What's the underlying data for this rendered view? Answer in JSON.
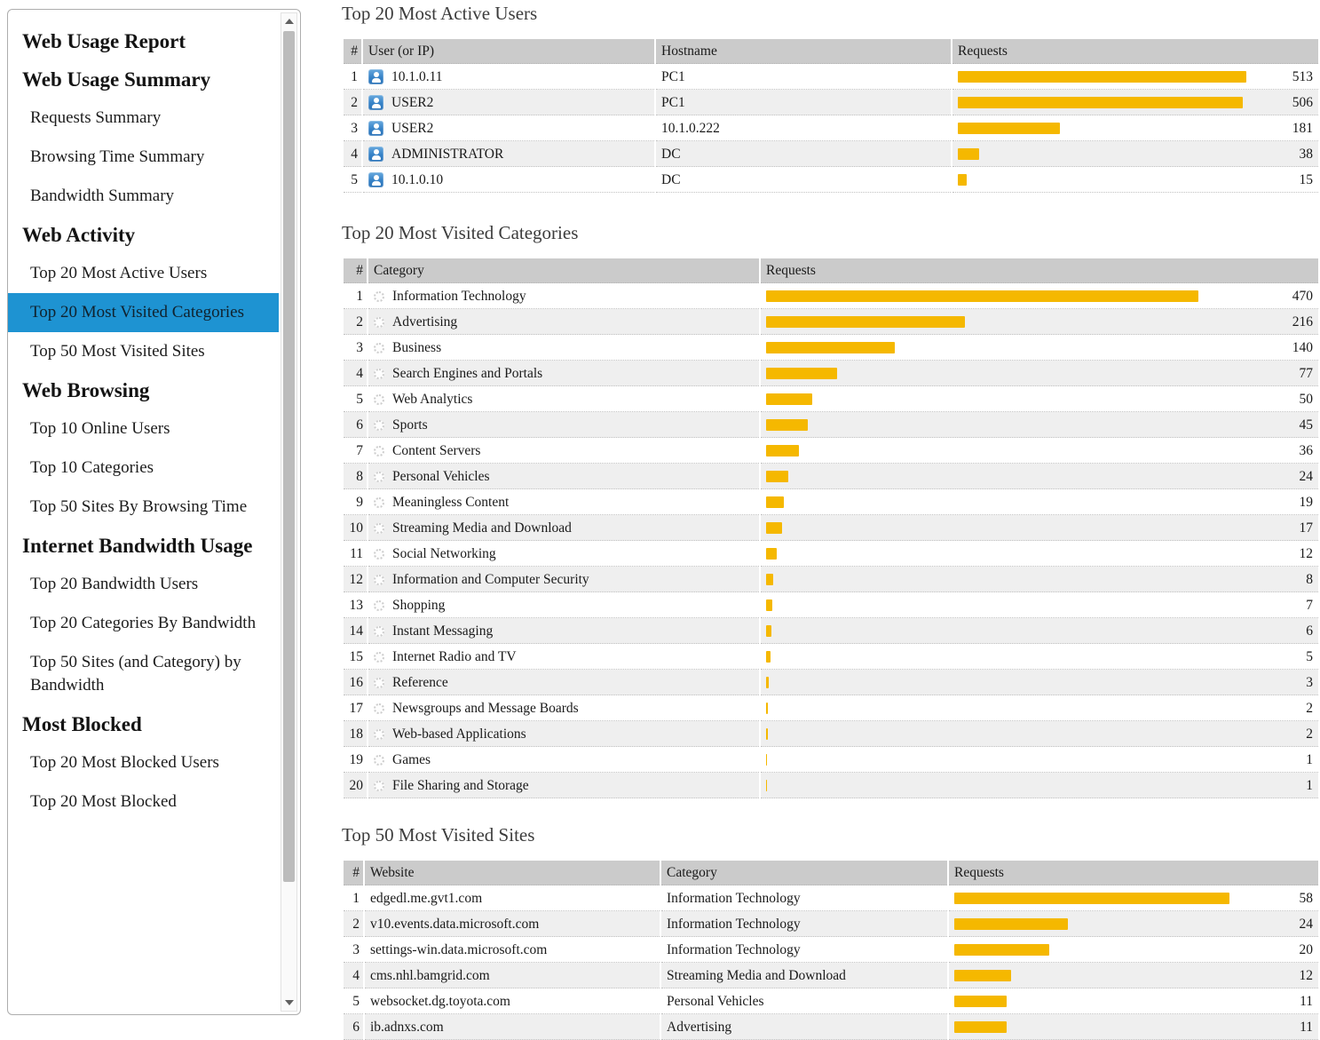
{
  "colors": {
    "accent_blue": "#1E93D2",
    "bar_yellow": "#F5B800",
    "header_gray": "#CBCBCB",
    "row_alt_gray": "#EFEFEF"
  },
  "sidebar": {
    "title": "Web Usage Report",
    "sections": [
      {
        "heading": "Web Usage Summary",
        "items": [
          {
            "label": "Requests Summary",
            "selected": false
          },
          {
            "label": "Browsing Time Summary",
            "selected": false
          },
          {
            "label": "Bandwidth Summary",
            "selected": false
          }
        ]
      },
      {
        "heading": "Web Activity",
        "items": [
          {
            "label": "Top 20 Most Active Users",
            "selected": false
          },
          {
            "label": "Top 20 Most Visited Categories",
            "selected": true
          },
          {
            "label": "Top 50 Most Visited Sites",
            "selected": false
          }
        ]
      },
      {
        "heading": "Web Browsing",
        "items": [
          {
            "label": "Top 10 Online Users",
            "selected": false
          },
          {
            "label": "Top 10 Categories",
            "selected": false
          },
          {
            "label": "Top 50 Sites By Browsing Time",
            "selected": false
          }
        ]
      },
      {
        "heading": "Internet Bandwidth Usage",
        "items": [
          {
            "label": "Top 20 Bandwidth Users",
            "selected": false
          },
          {
            "label": "Top 20 Categories By Bandwidth",
            "selected": false
          },
          {
            "label": "Top 50 Sites (and Category) by Bandwidth",
            "selected": false
          }
        ]
      },
      {
        "heading": "Most Blocked",
        "items": [
          {
            "label": "Top 20 Most Blocked Users",
            "selected": false
          },
          {
            "label": "Top 20 Most Blocked",
            "selected": false
          }
        ]
      }
    ],
    "scrollbar": {
      "up_icon": "triangle-up",
      "down_icon": "triangle-down"
    }
  },
  "tables": [
    {
      "title": "Top 20 Most Active Users",
      "columns": [
        "#",
        "User (or IP)",
        "Hostname",
        "Requests"
      ],
      "row_icon": "user-icon",
      "bar_max_value": 513,
      "rows": [
        {
          "rank": 1,
          "cells": [
            "10.1.0.11",
            "PC1"
          ],
          "requests": 513
        },
        {
          "rank": 2,
          "cells": [
            "USER2",
            "PC1"
          ],
          "requests": 506
        },
        {
          "rank": 3,
          "cells": [
            "USER2",
            "10.1.0.222"
          ],
          "requests": 181
        },
        {
          "rank": 4,
          "cells": [
            "ADMINISTRATOR",
            "DC"
          ],
          "requests": 38
        },
        {
          "rank": 5,
          "cells": [
            "10.1.0.10",
            "DC"
          ],
          "requests": 15
        }
      ]
    },
    {
      "title": "Top 20 Most Visited Categories",
      "columns": [
        "#",
        "Category",
        "Requests"
      ],
      "row_icon": "category-icon",
      "bar_max_value": 470,
      "rows": [
        {
          "rank": 1,
          "cells": [
            "Information Technology"
          ],
          "requests": 470
        },
        {
          "rank": 2,
          "cells": [
            "Advertising"
          ],
          "requests": 216
        },
        {
          "rank": 3,
          "cells": [
            "Business"
          ],
          "requests": 140
        },
        {
          "rank": 4,
          "cells": [
            "Search Engines and Portals"
          ],
          "requests": 77
        },
        {
          "rank": 5,
          "cells": [
            "Web Analytics"
          ],
          "requests": 50
        },
        {
          "rank": 6,
          "cells": [
            "Sports"
          ],
          "requests": 45
        },
        {
          "rank": 7,
          "cells": [
            "Content Servers"
          ],
          "requests": 36
        },
        {
          "rank": 8,
          "cells": [
            "Personal Vehicles"
          ],
          "requests": 24
        },
        {
          "rank": 9,
          "cells": [
            "Meaningless Content"
          ],
          "requests": 19
        },
        {
          "rank": 10,
          "cells": [
            "Streaming Media and Download"
          ],
          "requests": 17
        },
        {
          "rank": 11,
          "cells": [
            "Social Networking"
          ],
          "requests": 12
        },
        {
          "rank": 12,
          "cells": [
            "Information and Computer Security"
          ],
          "requests": 8
        },
        {
          "rank": 13,
          "cells": [
            "Shopping"
          ],
          "requests": 7
        },
        {
          "rank": 14,
          "cells": [
            "Instant Messaging"
          ],
          "requests": 6
        },
        {
          "rank": 15,
          "cells": [
            "Internet Radio and TV"
          ],
          "requests": 5
        },
        {
          "rank": 16,
          "cells": [
            "Reference"
          ],
          "requests": 3
        },
        {
          "rank": 17,
          "cells": [
            "Newsgroups and Message Boards"
          ],
          "requests": 2
        },
        {
          "rank": 18,
          "cells": [
            "Web-based Applications"
          ],
          "requests": 2
        },
        {
          "rank": 19,
          "cells": [
            "Games"
          ],
          "requests": 1
        },
        {
          "rank": 20,
          "cells": [
            "File Sharing and Storage"
          ],
          "requests": 1
        }
      ]
    },
    {
      "title": "Top 50 Most Visited Sites",
      "columns": [
        "#",
        "Website",
        "Category",
        "Requests"
      ],
      "row_icon": null,
      "bar_max_value": 58,
      "rows": [
        {
          "rank": 1,
          "cells": [
            "edgedl.me.gvt1.com",
            "Information Technology"
          ],
          "requests": 58
        },
        {
          "rank": 2,
          "cells": [
            "v10.events.data.microsoft.com",
            "Information Technology"
          ],
          "requests": 24
        },
        {
          "rank": 3,
          "cells": [
            "settings-win.data.microsoft.com",
            "Information Technology"
          ],
          "requests": 20
        },
        {
          "rank": 4,
          "cells": [
            "cms.nhl.bamgrid.com",
            "Streaming Media and Download"
          ],
          "requests": 12
        },
        {
          "rank": 5,
          "cells": [
            "websocket.dg.toyota.com",
            "Personal Vehicles"
          ],
          "requests": 11
        },
        {
          "rank": 6,
          "cells": [
            "ib.adnxs.com",
            "Advertising"
          ],
          "requests": 11
        }
      ]
    }
  ]
}
